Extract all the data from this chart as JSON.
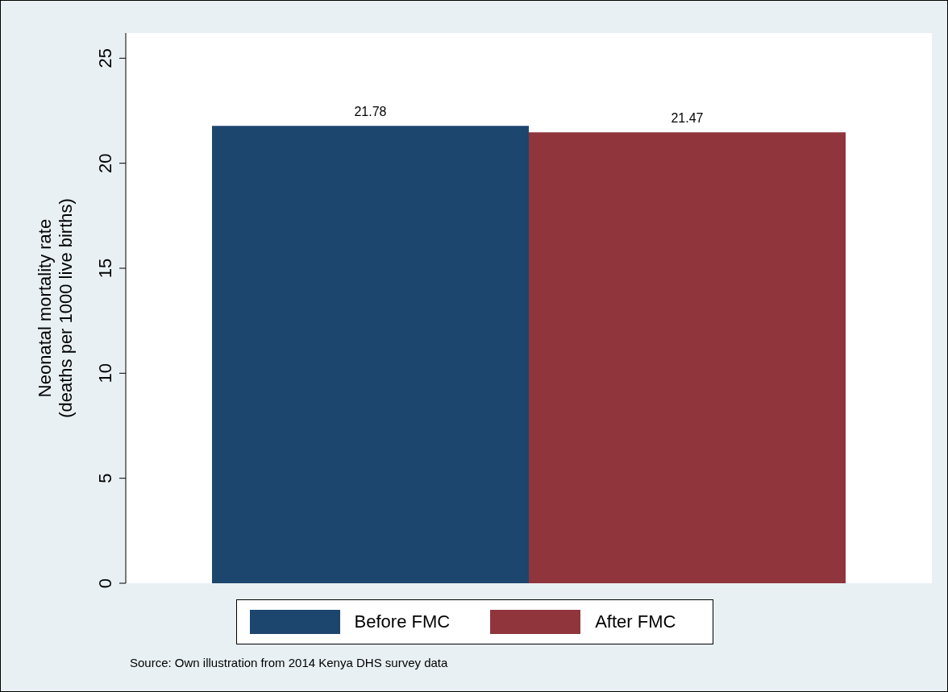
{
  "chart_data": {
    "type": "bar",
    "categories": [
      null
    ],
    "series": [
      {
        "name": "Before FMC",
        "color": "#1c466e",
        "values": [
          21.78
        ]
      },
      {
        "name": "After FMC",
        "color": "#90353c",
        "values": [
          21.47
        ]
      }
    ],
    "ylabel": "Neonatal mortality rate\n(deaths per 1000 live births)",
    "ylim": [
      0,
      26.2
    ],
    "yticks": [
      0,
      5,
      10,
      15,
      20,
      25
    ],
    "grid": false,
    "data_labels": true,
    "legend": "bottom",
    "annotations": [
      "Source: Own illustration from 2014 Kenya DHS survey data"
    ]
  }
}
